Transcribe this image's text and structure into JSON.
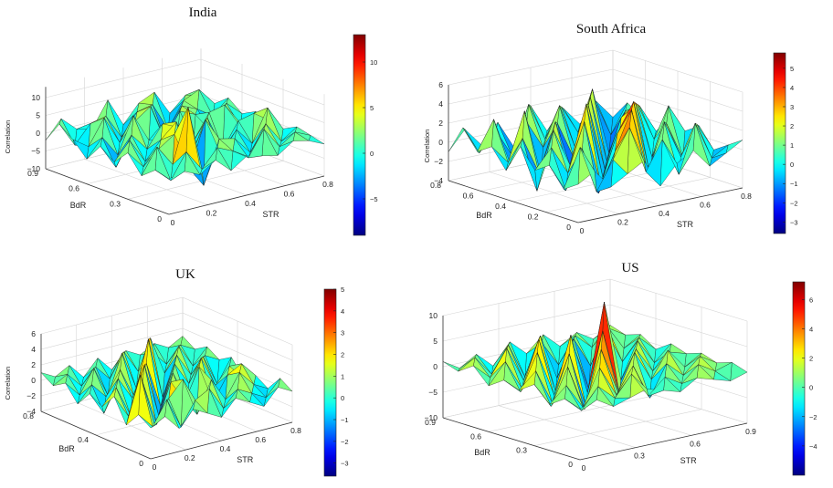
{
  "chart_data": [
    {
      "type": "surface",
      "title": "India",
      "xlabel": "STR",
      "ylabel": "BdR",
      "zlabel": "Correlation",
      "xticks": [
        "0",
        "0.2",
        "0.4",
        "0.6",
        "0.8"
      ],
      "yticks": [
        "0",
        "0.3",
        "0.6",
        "0.9"
      ],
      "zticks": [
        "−10",
        "−5",
        "0",
        "5",
        "10"
      ],
      "colorbar_ticks": [
        "−5",
        "0",
        "5",
        "10"
      ],
      "xlim": [
        0,
        0.8
      ],
      "ylim": [
        0,
        0.9
      ],
      "zlim": [
        -10,
        13
      ],
      "clim": [
        -9,
        13
      ],
      "colormap": "jet",
      "grid": true,
      "z": [
        [
          0,
          1,
          -1,
          2,
          -2,
          1,
          0,
          -1,
          2,
          1,
          -1
        ],
        [
          1,
          -3,
          4,
          -2,
          3,
          1,
          -2,
          5,
          -1,
          2,
          0
        ],
        [
          -2,
          5,
          -1,
          14,
          -9,
          3,
          2,
          -3,
          4,
          -2,
          1
        ],
        [
          3,
          -2,
          2,
          5,
          -6,
          7,
          -4,
          2,
          -3,
          6,
          -1
        ],
        [
          -1,
          4,
          -3,
          2,
          6,
          -4,
          5,
          -5,
          2,
          3,
          0
        ],
        [
          2,
          -5,
          3,
          -2,
          4,
          2,
          -3,
          4,
          5,
          -2,
          1
        ],
        [
          -3,
          2,
          -4,
          6,
          -2,
          -3,
          4,
          2,
          -4,
          3,
          -1
        ],
        [
          1,
          -2,
          5,
          -3,
          2,
          5,
          -6,
          3,
          1,
          -2,
          2
        ],
        [
          4,
          -3,
          2,
          3,
          -4,
          2,
          3,
          -5,
          2,
          4,
          -1
        ],
        [
          -2,
          3,
          -1,
          -2,
          5,
          -3,
          2,
          4,
          -3,
          1,
          0
        ]
      ]
    },
    {
      "type": "surface",
      "title": "South Africa",
      "xlabel": "STR",
      "ylabel": "BdR",
      "zlabel": "Correlation",
      "xticks": [
        "0",
        "0.2",
        "0.4",
        "0.6",
        "0.8"
      ],
      "yticks": [
        "0",
        "0.2",
        "0.4",
        "0.6",
        "0.8"
      ],
      "zticks": [
        "−4",
        "−2",
        "0",
        "2",
        "4",
        "6"
      ],
      "colorbar_ticks": [
        "−3",
        "−2",
        "−1",
        "0",
        "1",
        "2",
        "3",
        "4",
        "5"
      ],
      "xlim": [
        0,
        0.8
      ],
      "ylim": [
        0,
        0.8
      ],
      "zlim": [
        -4,
        6
      ],
      "clim": [
        -3.6,
        5.8
      ],
      "colormap": "jet",
      "grid": true,
      "z": [
        [
          0,
          1,
          -1,
          0,
          1,
          -2,
          0,
          1,
          -1,
          0,
          1
        ],
        [
          -1,
          3,
          -2,
          1,
          4,
          -1,
          2,
          -2,
          3,
          -1,
          0
        ],
        [
          1,
          -2,
          2,
          -3,
          1,
          5,
          -2,
          3,
          -1,
          2,
          -1
        ],
        [
          0,
          2,
          -1,
          4,
          -3,
          2,
          5,
          -3,
          2,
          -2,
          1
        ],
        [
          2,
          -3,
          3,
          -1,
          5,
          -3,
          1,
          4,
          -2,
          3,
          0
        ],
        [
          -1,
          2,
          -2,
          3,
          -4,
          4,
          -3,
          2,
          3,
          -1,
          1
        ],
        [
          1,
          -1,
          4,
          -3,
          2,
          -2,
          4,
          -3,
          1,
          2,
          -1
        ],
        [
          0,
          3,
          -2,
          2,
          -1,
          3,
          -2,
          4,
          -3,
          1,
          0
        ],
        [
          2,
          -1,
          1,
          -2,
          3,
          -1,
          2,
          -1,
          2,
          -2,
          1
        ],
        [
          -1,
          1,
          -1,
          1,
          -2,
          2,
          -1,
          1,
          -1,
          1,
          -1
        ]
      ]
    },
    {
      "type": "surface",
      "title": "UK",
      "xlabel": "STR",
      "ylabel": "BdR",
      "zlabel": "Correlation",
      "xticks": [
        "0",
        "0.2",
        "0.4",
        "0.6",
        "0.8"
      ],
      "yticks": [
        "0",
        "0.4",
        "0.8"
      ],
      "zticks": [
        "−4",
        "−2",
        "0",
        "2",
        "4",
        "6"
      ],
      "colorbar_ticks": [
        "−3",
        "−2",
        "−1",
        "0",
        "1",
        "2",
        "3",
        "4",
        "5"
      ],
      "xlim": [
        0,
        0.8
      ],
      "ylim": [
        0,
        0.8
      ],
      "zlim": [
        -4,
        6
      ],
      "clim": [
        -3.6,
        5
      ],
      "colormap": "jet",
      "grid": true,
      "z": [
        [
          0,
          1,
          -1,
          1,
          0,
          -1,
          1,
          0,
          -1,
          1,
          0
        ],
        [
          1,
          -1,
          2,
          -2,
          1,
          2,
          -1,
          1,
          0,
          -1,
          1
        ],
        [
          -1,
          5,
          -2,
          1,
          3,
          -2,
          2,
          -1,
          2,
          0,
          -1
        ],
        [
          2,
          -1,
          3,
          -3,
          2,
          -1,
          3,
          -2,
          1,
          2,
          0
        ],
        [
          0,
          2,
          -2,
          4,
          -3,
          2,
          -2,
          3,
          -1,
          1,
          -1
        ],
        [
          1,
          -2,
          2,
          -1,
          3,
          -3,
          2,
          -1,
          2,
          -2,
          1
        ],
        [
          -1,
          1,
          -1,
          2,
          -2,
          5,
          -3,
          2,
          -1,
          1,
          0
        ],
        [
          1,
          -1,
          2,
          -2,
          3,
          -2,
          4,
          -1,
          2,
          -1,
          1
        ],
        [
          0,
          1,
          -1,
          1,
          -1,
          2,
          -1,
          1,
          -1,
          1,
          0
        ],
        [
          1,
          0,
          1,
          -1,
          1,
          -1,
          1,
          0,
          1,
          0,
          1
        ]
      ]
    },
    {
      "type": "surface",
      "title": "US",
      "xlabel": "STR",
      "ylabel": "BdR",
      "zlabel": "",
      "xticks": [
        "0",
        "0.3",
        "0.6",
        "0.9"
      ],
      "yticks": [
        "0",
        "0.3",
        "0.6",
        "0.9"
      ],
      "zticks": [
        "−10",
        "−5",
        "0",
        "5",
        "10"
      ],
      "colorbar_ticks": [
        "−4",
        "−2",
        "0",
        "2",
        "4",
        "6"
      ],
      "xlim": [
        0,
        0.9
      ],
      "ylim": [
        0,
        0.9
      ],
      "zlim": [
        -10,
        10
      ],
      "clim": [
        -6,
        7.2
      ],
      "colormap": "jet",
      "grid": true,
      "z": [
        [
          0,
          1,
          -1,
          0,
          1,
          0,
          -1,
          1,
          0,
          -1,
          0
        ],
        [
          1,
          -2,
          2,
          -1,
          3,
          -2,
          1,
          -1,
          2,
          0,
          1
        ],
        [
          -1,
          2,
          -3,
          4,
          -2,
          3,
          -4,
          2,
          -1,
          2,
          0
        ],
        [
          2,
          -3,
          4,
          -5,
          6,
          -3,
          4,
          -2,
          3,
          -1,
          1
        ],
        [
          0,
          3,
          -4,
          5,
          -6,
          8,
          -5,
          3,
          -2,
          1,
          0
        ],
        [
          1,
          -2,
          5,
          -4,
          7,
          -5,
          12,
          -4,
          3,
          -2,
          1
        ],
        [
          -1,
          3,
          -3,
          6,
          -5,
          4,
          -6,
          5,
          -2,
          2,
          -1
        ],
        [
          2,
          -1,
          4,
          -3,
          5,
          -4,
          3,
          -3,
          4,
          -1,
          1
        ],
        [
          0,
          2,
          -2,
          3,
          -4,
          2,
          -3,
          2,
          -1,
          2,
          0
        ],
        [
          1,
          -1,
          1,
          -2,
          2,
          -1,
          2,
          -1,
          1,
          -1,
          1
        ]
      ]
    }
  ]
}
